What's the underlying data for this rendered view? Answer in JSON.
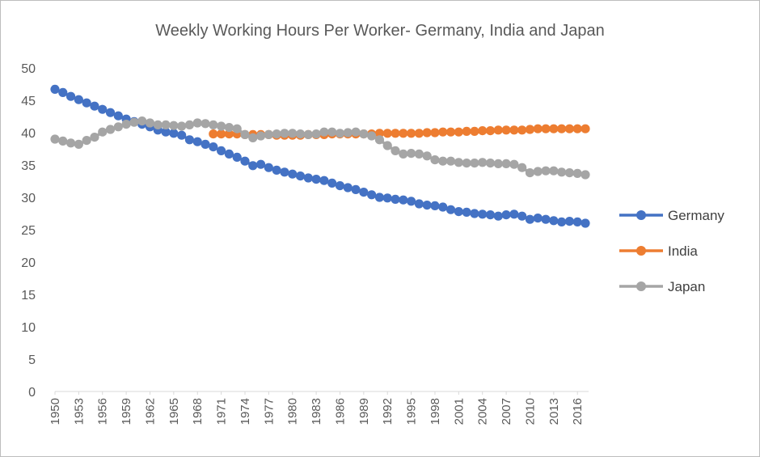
{
  "chart_data": {
    "type": "line",
    "title": "Weekly Working Hours Per Worker- Germany, India and Japan",
    "xlabel": "",
    "ylabel": "",
    "ylim": [
      0,
      50
    ],
    "y_ticks": [
      0,
      5,
      10,
      15,
      20,
      25,
      30,
      35,
      40,
      45,
      50
    ],
    "x_tick_labels": [
      "1950",
      "1953",
      "1956",
      "1959",
      "1962",
      "1965",
      "1968",
      "1971",
      "1974",
      "1977",
      "1980",
      "1983",
      "1986",
      "1989",
      "1992",
      "1995",
      "1998",
      "2001",
      "2004",
      "2007",
      "2010",
      "2013",
      "2016"
    ],
    "grid": false,
    "legend_position": "right",
    "x": [
      1950,
      1951,
      1952,
      1953,
      1954,
      1955,
      1956,
      1957,
      1958,
      1959,
      1960,
      1961,
      1962,
      1963,
      1964,
      1965,
      1966,
      1967,
      1968,
      1969,
      1970,
      1971,
      1972,
      1973,
      1974,
      1975,
      1976,
      1977,
      1978,
      1979,
      1980,
      1981,
      1982,
      1983,
      1984,
      1985,
      1986,
      1987,
      1988,
      1989,
      1990,
      1991,
      1992,
      1993,
      1994,
      1995,
      1996,
      1997,
      1998,
      1999,
      2000,
      2001,
      2002,
      2003,
      2004,
      2005,
      2006,
      2007,
      2008,
      2009,
      2010,
      2011,
      2012,
      2013,
      2014,
      2015,
      2016,
      2017
    ],
    "series": [
      {
        "name": "Germany",
        "color": "#4472C4",
        "values": [
          46.7,
          46.2,
          45.6,
          45.1,
          44.6,
          44.1,
          43.6,
          43.1,
          42.6,
          42.1,
          41.7,
          41.3,
          40.9,
          40.4,
          40.1,
          39.9,
          39.6,
          38.9,
          38.6,
          38.2,
          37.8,
          37.2,
          36.7,
          36.2,
          35.6,
          34.9,
          35.1,
          34.6,
          34.2,
          33.9,
          33.6,
          33.3,
          33.0,
          32.8,
          32.6,
          32.2,
          31.8,
          31.5,
          31.2,
          30.8,
          30.4,
          30.0,
          29.9,
          29.7,
          29.6,
          29.4,
          29.0,
          28.8,
          28.7,
          28.5,
          28.1,
          27.8,
          27.7,
          27.5,
          27.4,
          27.3,
          27.1,
          27.3,
          27.4,
          27.1,
          26.6,
          26.8,
          26.6,
          26.4,
          26.2,
          26.3,
          26.2,
          26.0
        ]
      },
      {
        "name": "India",
        "color": "#ED7D31",
        "values": [
          null,
          null,
          null,
          null,
          null,
          null,
          null,
          null,
          null,
          null,
          null,
          null,
          null,
          null,
          null,
          null,
          null,
          null,
          null,
          null,
          39.8,
          39.8,
          39.8,
          39.8,
          39.7,
          39.7,
          39.7,
          39.7,
          39.6,
          39.6,
          39.6,
          39.6,
          39.7,
          39.7,
          39.7,
          39.8,
          39.8,
          39.8,
          39.8,
          39.8,
          39.8,
          39.9,
          39.9,
          39.9,
          39.9,
          39.9,
          39.9,
          40.0,
          40.0,
          40.1,
          40.1,
          40.1,
          40.2,
          40.2,
          40.3,
          40.3,
          40.4,
          40.4,
          40.4,
          40.4,
          40.5,
          40.6,
          40.6,
          40.6,
          40.6,
          40.6,
          40.6,
          40.6
        ]
      },
      {
        "name": "Japan",
        "color": "#A5A5A5",
        "values": [
          39.0,
          38.7,
          38.4,
          38.2,
          38.8,
          39.3,
          40.1,
          40.5,
          40.9,
          41.3,
          41.6,
          41.8,
          41.5,
          41.2,
          41.2,
          41.1,
          41.0,
          41.2,
          41.5,
          41.4,
          41.2,
          41.0,
          40.8,
          40.6,
          39.7,
          39.2,
          39.5,
          39.7,
          39.8,
          39.9,
          39.9,
          39.8,
          39.7,
          39.8,
          40.1,
          40.1,
          39.9,
          40.0,
          40.1,
          39.8,
          39.5,
          38.9,
          38.0,
          37.2,
          36.7,
          36.8,
          36.7,
          36.4,
          35.8,
          35.6,
          35.6,
          35.4,
          35.3,
          35.3,
          35.4,
          35.3,
          35.2,
          35.2,
          35.1,
          34.6,
          33.8,
          34.0,
          34.1,
          34.1,
          33.9,
          33.8,
          33.7,
          33.5
        ]
      }
    ]
  }
}
